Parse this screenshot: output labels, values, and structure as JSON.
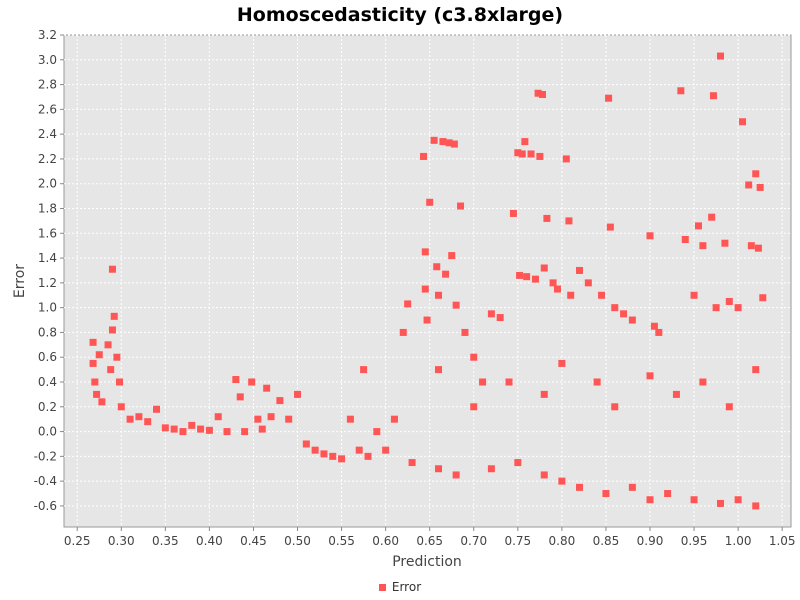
{
  "chart_data": {
    "type": "scatter",
    "title": "Homoscedasticity (c3.8xlarge)",
    "xlabel": "Prediction",
    "ylabel": "Error",
    "xlim": [
      0.235,
      1.06
    ],
    "ylim": [
      -0.77,
      3.2
    ],
    "xticks": [
      "0.25",
      "0.30",
      "0.35",
      "0.40",
      "0.45",
      "0.50",
      "0.55",
      "0.60",
      "0.65",
      "0.70",
      "0.75",
      "0.80",
      "0.85",
      "0.90",
      "0.95",
      "1.00",
      "1.05"
    ],
    "yticks": [
      "-0.6",
      "-0.4",
      "-0.2",
      "0.0",
      "0.2",
      "0.4",
      "0.6",
      "0.8",
      "1.0",
      "1.2",
      "1.4",
      "1.6",
      "1.8",
      "2.0",
      "2.2",
      "2.4",
      "2.6",
      "2.8",
      "3.0",
      "3.2"
    ],
    "grid": true,
    "legend": "bottom",
    "series": [
      {
        "name": "Error",
        "color": "#ff5555",
        "points": [
          [
            0.268,
            0.72
          ],
          [
            0.268,
            0.55
          ],
          [
            0.27,
            0.4
          ],
          [
            0.272,
            0.3
          ],
          [
            0.275,
            0.62
          ],
          [
            0.278,
            0.24
          ],
          [
            0.285,
            0.7
          ],
          [
            0.288,
            0.5
          ],
          [
            0.29,
            1.31
          ],
          [
            0.292,
            0.93
          ],
          [
            0.29,
            0.82
          ],
          [
            0.295,
            0.6
          ],
          [
            0.298,
            0.4
          ],
          [
            0.3,
            0.2
          ],
          [
            0.31,
            0.1
          ],
          [
            0.32,
            0.12
          ],
          [
            0.33,
            0.08
          ],
          [
            0.34,
            0.18
          ],
          [
            0.35,
            0.03
          ],
          [
            0.36,
            0.02
          ],
          [
            0.37,
            0.0
          ],
          [
            0.38,
            0.05
          ],
          [
            0.39,
            0.02
          ],
          [
            0.4,
            0.01
          ],
          [
            0.41,
            0.12
          ],
          [
            0.42,
            0.0
          ],
          [
            0.43,
            0.42
          ],
          [
            0.435,
            0.28
          ],
          [
            0.44,
            0.0
          ],
          [
            0.448,
            0.4
          ],
          [
            0.455,
            0.1
          ],
          [
            0.46,
            0.02
          ],
          [
            0.465,
            0.35
          ],
          [
            0.47,
            0.12
          ],
          [
            0.48,
            0.25
          ],
          [
            0.49,
            0.1
          ],
          [
            0.5,
            0.3
          ],
          [
            0.51,
            -0.1
          ],
          [
            0.52,
            -0.15
          ],
          [
            0.53,
            -0.18
          ],
          [
            0.54,
            -0.2
          ],
          [
            0.55,
            -0.22
          ],
          [
            0.56,
            0.1
          ],
          [
            0.57,
            -0.15
          ],
          [
            0.575,
            0.5
          ],
          [
            0.58,
            -0.2
          ],
          [
            0.59,
            0.0
          ],
          [
            0.6,
            -0.15
          ],
          [
            0.61,
            0.1
          ],
          [
            0.62,
            0.8
          ],
          [
            0.625,
            1.03
          ],
          [
            0.63,
            -0.25
          ],
          [
            0.643,
            2.22
          ],
          [
            0.645,
            1.45
          ],
          [
            0.645,
            1.15
          ],
          [
            0.647,
            0.9
          ],
          [
            0.65,
            1.85
          ],
          [
            0.655,
            2.35
          ],
          [
            0.658,
            1.33
          ],
          [
            0.66,
            1.1
          ],
          [
            0.665,
            2.34
          ],
          [
            0.668,
            1.27
          ],
          [
            0.672,
            2.33
          ],
          [
            0.675,
            1.42
          ],
          [
            0.678,
            2.32
          ],
          [
            0.68,
            1.02
          ],
          [
            0.685,
            1.82
          ],
          [
            0.69,
            0.8
          ],
          [
            0.7,
            0.6
          ],
          [
            0.71,
            0.4
          ],
          [
            0.72,
            0.95
          ],
          [
            0.73,
            0.92
          ],
          [
            0.745,
            1.76
          ],
          [
            0.75,
            2.25
          ],
          [
            0.752,
            1.26
          ],
          [
            0.755,
            2.24
          ],
          [
            0.758,
            2.34
          ],
          [
            0.76,
            1.25
          ],
          [
            0.765,
            2.24
          ],
          [
            0.77,
            1.23
          ],
          [
            0.773,
            2.73
          ],
          [
            0.775,
            2.22
          ],
          [
            0.778,
            2.72
          ],
          [
            0.78,
            1.32
          ],
          [
            0.783,
            1.72
          ],
          [
            0.79,
            1.2
          ],
          [
            0.795,
            1.15
          ],
          [
            0.805,
            2.2
          ],
          [
            0.808,
            1.7
          ],
          [
            0.81,
            1.1
          ],
          [
            0.82,
            1.3
          ],
          [
            0.83,
            1.2
          ],
          [
            0.845,
            1.1
          ],
          [
            0.853,
            2.69
          ],
          [
            0.855,
            1.65
          ],
          [
            0.86,
            1.0
          ],
          [
            0.87,
            0.95
          ],
          [
            0.88,
            0.9
          ],
          [
            0.9,
            1.58
          ],
          [
            0.905,
            0.85
          ],
          [
            0.91,
            0.8
          ],
          [
            0.935,
            2.75
          ],
          [
            0.94,
            1.55
          ],
          [
            0.95,
            1.1
          ],
          [
            0.955,
            1.66
          ],
          [
            0.96,
            1.5
          ],
          [
            0.97,
            1.73
          ],
          [
            0.972,
            2.71
          ],
          [
            0.975,
            1.0
          ],
          [
            0.98,
            3.03
          ],
          [
            0.985,
            1.52
          ],
          [
            0.99,
            1.05
          ],
          [
            1.0,
            1.0
          ],
          [
            1.005,
            2.5
          ],
          [
            1.012,
            1.99
          ],
          [
            1.015,
            1.5
          ],
          [
            1.02,
            2.08
          ],
          [
            1.023,
            1.48
          ],
          [
            1.025,
            1.97
          ],
          [
            1.028,
            1.08
          ],
          [
            0.66,
            -0.3
          ],
          [
            0.68,
            -0.35
          ],
          [
            0.72,
            -0.3
          ],
          [
            0.75,
            -0.25
          ],
          [
            0.78,
            -0.35
          ],
          [
            0.8,
            -0.4
          ],
          [
            0.82,
            -0.45
          ],
          [
            0.85,
            -0.5
          ],
          [
            0.88,
            -0.45
          ],
          [
            0.9,
            -0.55
          ],
          [
            0.92,
            -0.5
          ],
          [
            0.95,
            -0.55
          ],
          [
            0.98,
            -0.58
          ],
          [
            1.0,
            -0.55
          ],
          [
            1.02,
            -0.6
          ],
          [
            0.66,
            0.5
          ],
          [
            0.7,
            0.2
          ],
          [
            0.74,
            0.4
          ],
          [
            0.78,
            0.3
          ],
          [
            0.8,
            0.55
          ],
          [
            0.84,
            0.4
          ],
          [
            0.86,
            0.2
          ],
          [
            0.9,
            0.45
          ],
          [
            0.93,
            0.3
          ],
          [
            0.96,
            0.4
          ],
          [
            0.99,
            0.2
          ],
          [
            1.02,
            0.5
          ]
        ]
      }
    ]
  }
}
